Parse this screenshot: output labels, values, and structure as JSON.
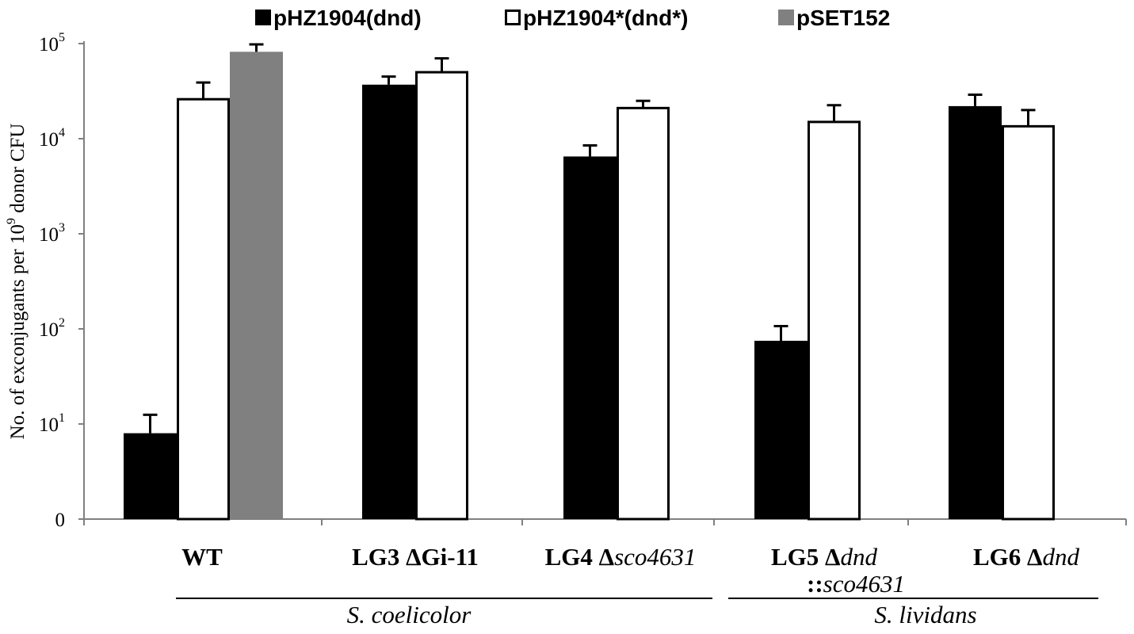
{
  "chart_data": {
    "type": "bar",
    "y_scale": "log",
    "ylabel_parts": [
      "No. of exconjugants per 10",
      "9",
      " donor CFU"
    ],
    "yticks": [
      {
        "base": "0",
        "exp": ""
      },
      {
        "base": "10",
        "exp": "1"
      },
      {
        "base": "10",
        "exp": "2"
      },
      {
        "base": "10",
        "exp": "3"
      },
      {
        "base": "10",
        "exp": "4"
      },
      {
        "base": "10",
        "exp": "5"
      }
    ],
    "legend": [
      {
        "label": "pHZ1904(dnd)",
        "color": "#000000",
        "fill": "#000000"
      },
      {
        "label": "pHZ1904*(dnd*)",
        "color": "#000000",
        "fill": "#ffffff"
      },
      {
        "label": "pSET152",
        "color": "#808080",
        "fill": "#808080"
      }
    ],
    "legend_position": "top",
    "categories": [
      {
        "parts": [
          {
            "t": "WT",
            "bold": true
          }
        ]
      },
      {
        "parts": [
          {
            "t": "LG3 ΔGi-11",
            "bold": true
          }
        ]
      },
      {
        "parts": [
          {
            "t": "LG4 Δ",
            "bold": true
          },
          {
            "t": "sco4631",
            "italic": true
          }
        ]
      },
      {
        "parts": [
          {
            "t": "LG5 Δ",
            "bold": true
          },
          {
            "t": "dnd",
            "italic": true
          }
        ],
        "line2": [
          {
            "t": "::",
            "bold": true
          },
          {
            "t": "sco4631",
            "italic": true
          }
        ]
      },
      {
        "parts": [
          {
            "t": "LG6 Δ",
            "bold": true
          },
          {
            "t": "dnd",
            "italic": true
          }
        ]
      }
    ],
    "series": [
      {
        "name": "pHZ1904(dnd)",
        "values": [
          8,
          37000,
          6500,
          75,
          22000
        ],
        "errors": [
          4.5,
          8000,
          2000,
          32,
          7000
        ]
      },
      {
        "name": "pHZ1904*(dnd*)",
        "values": [
          26000,
          50000,
          21000,
          15000,
          13500
        ],
        "errors": [
          13000,
          20000,
          4000,
          7500,
          6500
        ]
      },
      {
        "name": "pSET152",
        "values": [
          82000,
          null,
          null,
          null,
          null
        ],
        "errors": [
          16000,
          null,
          null,
          null,
          null
        ]
      }
    ],
    "groups": [
      {
        "label": "S. coelicolor",
        "categories": [
          0,
          1,
          2
        ]
      },
      {
        "label": "S. lividans",
        "categories": [
          3,
          4
        ]
      }
    ]
  }
}
